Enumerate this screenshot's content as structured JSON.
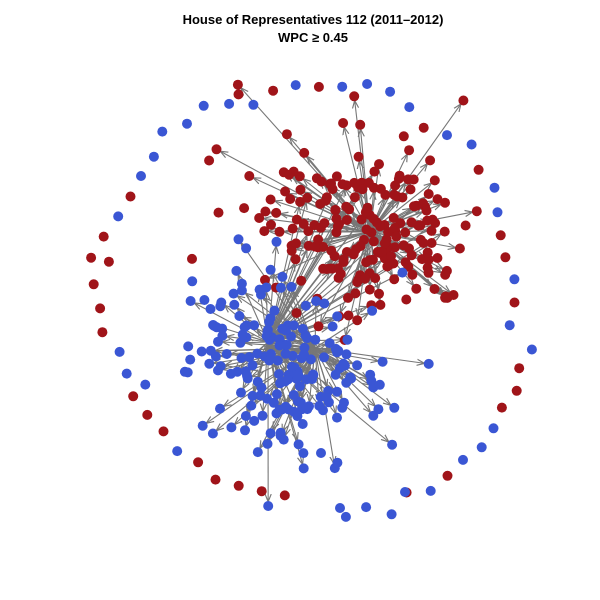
{
  "header": {
    "title": "House of Representatives 112 (2011–2012)",
    "subtitle": "WPC ≥ 0.45"
  }
}
